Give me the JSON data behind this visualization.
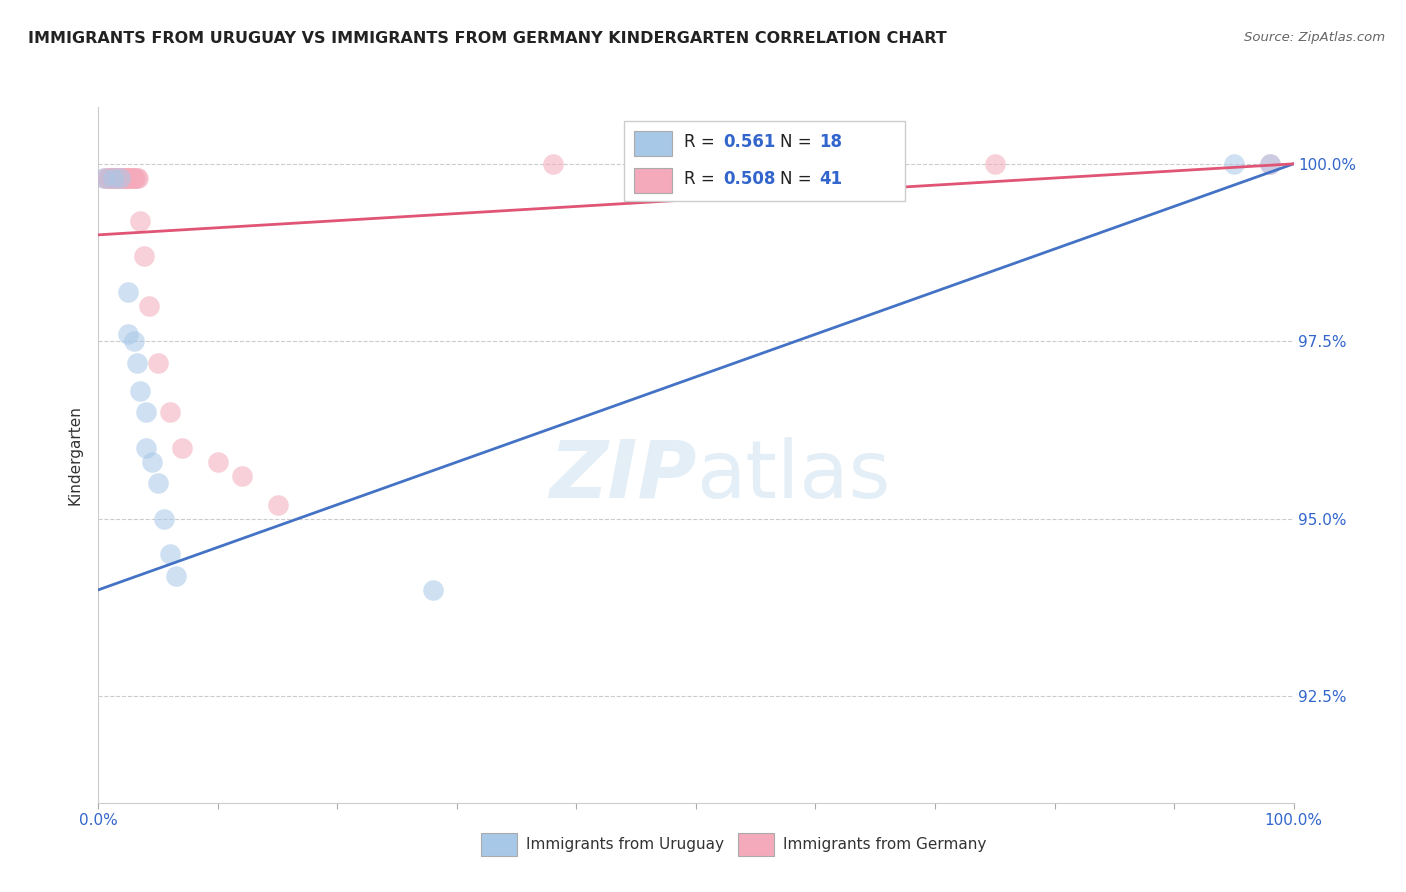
{
  "title": "IMMIGRANTS FROM URUGUAY VS IMMIGRANTS FROM GERMANY KINDERGARTEN CORRELATION CHART",
  "source": "Source: ZipAtlas.com",
  "ylabel": "Kindergarten",
  "legend_blue_label": "Immigrants from Uruguay",
  "legend_pink_label": "Immigrants from Germany",
  "R_blue": 0.561,
  "N_blue": 18,
  "R_pink": 0.508,
  "N_pink": 41,
  "blue_color": "#A8C8E8",
  "pink_color": "#F4AABB",
  "trend_blue": "#4472C4",
  "trend_pink": "#E05575",
  "xlim": [
    0.0,
    1.0
  ],
  "ylim": [
    0.91,
    1.008
  ],
  "yticks": [
    1.0,
    0.975,
    0.95,
    0.925
  ],
  "ytick_labels": [
    "100.0%",
    "97.5%",
    "95.0%",
    "92.5%"
  ],
  "xticks": [
    0.0,
    0.1,
    0.2,
    0.3,
    0.4,
    0.5,
    0.6,
    0.7,
    0.8,
    0.9,
    1.0
  ],
  "grid_color": "#CCCCCC",
  "blue_points_x": [
    0.005,
    0.012,
    0.018,
    0.025,
    0.025,
    0.03,
    0.032,
    0.035,
    0.04,
    0.04,
    0.045,
    0.05,
    0.055,
    0.06,
    0.065,
    0.28,
    0.95,
    0.98
  ],
  "blue_points_y": [
    0.998,
    0.998,
    0.998,
    0.982,
    0.976,
    0.975,
    0.972,
    0.968,
    0.965,
    0.96,
    0.958,
    0.955,
    0.95,
    0.945,
    0.942,
    0.94,
    1.0,
    1.0
  ],
  "pink_points_x": [
    0.005,
    0.007,
    0.008,
    0.009,
    0.01,
    0.011,
    0.012,
    0.013,
    0.014,
    0.015,
    0.016,
    0.017,
    0.018,
    0.019,
    0.02,
    0.021,
    0.022,
    0.023,
    0.024,
    0.025,
    0.026,
    0.027,
    0.028,
    0.029,
    0.03,
    0.031,
    0.032,
    0.033,
    0.035,
    0.038,
    0.042,
    0.05,
    0.06,
    0.07,
    0.1,
    0.12,
    0.15,
    0.38,
    0.5,
    0.75,
    0.98
  ],
  "pink_points_y": [
    0.998,
    0.998,
    0.998,
    0.998,
    0.998,
    0.998,
    0.998,
    0.998,
    0.998,
    0.998,
    0.998,
    0.998,
    0.998,
    0.998,
    0.998,
    0.998,
    0.998,
    0.998,
    0.998,
    0.998,
    0.998,
    0.998,
    0.998,
    0.998,
    0.998,
    0.998,
    0.998,
    0.998,
    0.992,
    0.987,
    0.98,
    0.972,
    0.965,
    0.96,
    0.958,
    0.956,
    0.952,
    1.0,
    1.0,
    1.0,
    1.0
  ],
  "blue_trend_x0": 0.0,
  "blue_trend_y0": 0.94,
  "blue_trend_x1": 1.0,
  "blue_trend_y1": 1.0,
  "pink_trend_x0": 0.0,
  "pink_trend_y0": 0.99,
  "pink_trend_x1": 1.0,
  "pink_trend_y1": 1.0
}
